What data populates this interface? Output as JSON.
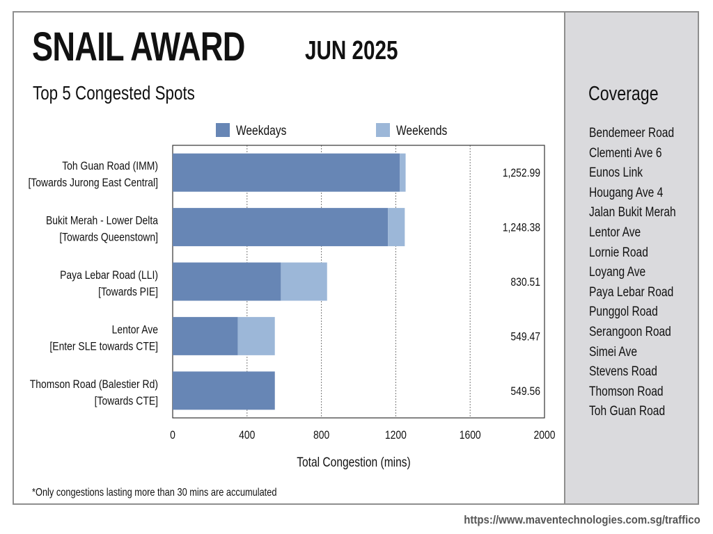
{
  "header": {
    "title": "SNAIL AWARD",
    "month": "JUN 2025",
    "subtitle": "Top 5 Congested Spots"
  },
  "coverage": {
    "title": "Coverage",
    "roads": [
      "Bendemeer Road",
      "Clementi Ave 6",
      "Eunos Link",
      "Hougang Ave 4",
      "Jalan Bukit Merah",
      "Lentor Ave",
      "Lornie Road",
      "Loyang Ave",
      "Paya Lebar Road",
      "Punggol Road",
      "Serangoon Road",
      "Simei Ave",
      "Stevens Road",
      "Thomson Road",
      "Toh Guan Road"
    ]
  },
  "footnote": "*Only congestions lasting more than 30 mins are accumulated",
  "url": "https://www.maventechnologies.com.sg/traffico",
  "colors": {
    "weekdays": "#6786b5",
    "weekends": "#9cb7d8"
  },
  "chart_data": {
    "type": "bar",
    "orientation": "horizontal",
    "stacked": true,
    "categories": [
      [
        "Toh Guan Road (IMM)",
        "[Towards Jurong East Central]"
      ],
      [
        "Bukit Merah - Lower Delta",
        "[Towards Queenstown]"
      ],
      [
        "Paya Lebar Road (LLI)",
        "[Towards PIE]"
      ],
      [
        "Lentor Ave",
        "[Enter SLE towards CTE]"
      ],
      [
        "Thomson Road (Balestier Rd)",
        "[Towards CTE]"
      ]
    ],
    "series": [
      {
        "name": "Weekdays",
        "values": [
          1222,
          1158,
          582,
          350,
          549.56
        ]
      },
      {
        "name": "Weekends",
        "values": [
          30.99,
          90.38,
          248.51,
          199.47,
          0
        ]
      }
    ],
    "totals": [
      "1,252.99",
      "1,248.38",
      "830.51",
      "549.47",
      "549.56"
    ],
    "xlabel": "Total Congestion (mins)",
    "ylabel": "",
    "xlim": [
      0,
      2000
    ],
    "xticks": [
      0,
      400,
      800,
      1200,
      1600,
      2000
    ],
    "grid": true,
    "legend": "top"
  }
}
